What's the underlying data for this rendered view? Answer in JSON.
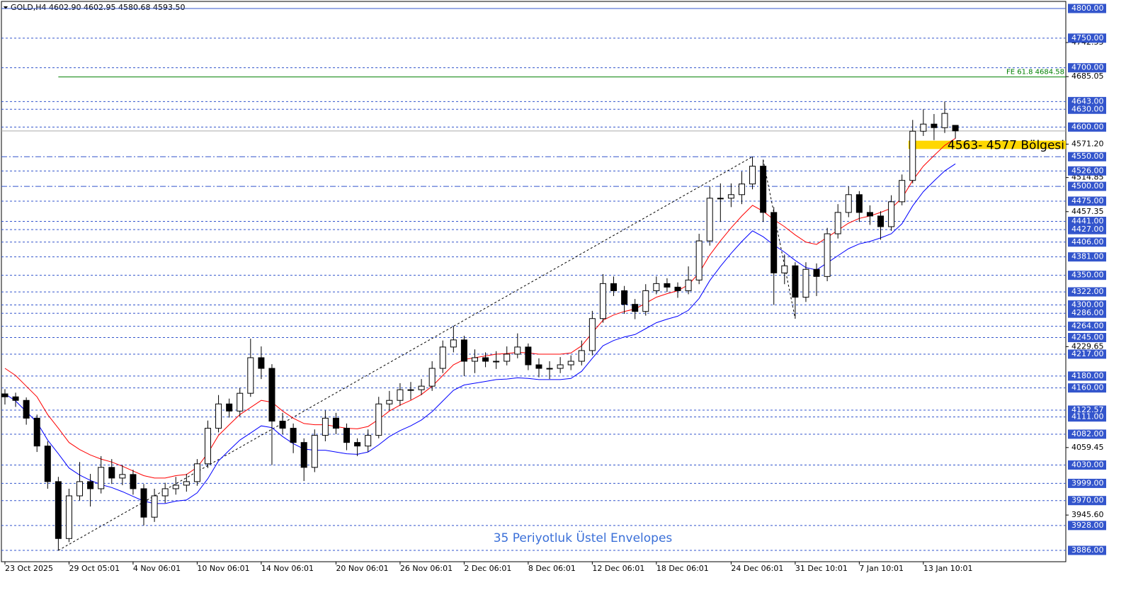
{
  "chart_data": {
    "type": "candlestick",
    "header": "GOLD,H4  4602.90 4602.95 4580.68 4593.50",
    "annotation": "35 Periyotluk Üstel Envelopes",
    "xlim": [
      -0.33,
      99.34
    ],
    "ylim": [
      3866.9,
      4814.3
    ],
    "xticks": [
      {
        "value": 0,
        "label": "23 Oct 2025"
      },
      {
        "value": 6,
        "label": "29 Oct 05:01"
      },
      {
        "value": 12,
        "label": "4 Nov 06:01"
      },
      {
        "value": 18,
        "label": "10 Nov 06:01"
      },
      {
        "value": 24,
        "label": "14 Nov 06:01"
      },
      {
        "value": 31,
        "label": "20 Nov 06:01"
      },
      {
        "value": 37,
        "label": "26 Nov 06:01"
      },
      {
        "value": 43,
        "label": "2 Dec 06:01"
      },
      {
        "value": 49,
        "label": "8 Dec 06:01"
      },
      {
        "value": 55,
        "label": "12 Dec 06:01"
      },
      {
        "value": 61,
        "label": "18 Dec 06:01"
      },
      {
        "value": 68,
        "label": "24 Dec 06:01"
      },
      {
        "value": 74,
        "label": "31 Dec 10:01"
      },
      {
        "value": 80,
        "label": "7 Jan 10:01"
      },
      {
        "value": 86,
        "label": "13 Jan 10:01"
      }
    ],
    "yticks": [
      {
        "value": 4742.55,
        "label": "4742.55"
      },
      {
        "value": 4685.05,
        "label": "4685.05"
      },
      {
        "value": 4571.2,
        "label": "4571.20"
      },
      {
        "value": 4514.85,
        "label": "4514.85"
      },
      {
        "value": 4457.35,
        "label": "4457.35"
      },
      {
        "value": 4229.65,
        "label": "4229.65"
      },
      {
        "value": 4059.45,
        "label": "4059.45"
      },
      {
        "value": 3945.6,
        "label": "3945.60"
      }
    ],
    "levels": [
      {
        "value": 4800,
        "label": "4800.00",
        "style": "solid"
      },
      {
        "value": 4750,
        "label": "4750.00"
      },
      {
        "value": 4700,
        "label": "4700.00"
      },
      {
        "value": 4643,
        "label": "4643.00"
      },
      {
        "value": 4630,
        "label": "4630.00"
      },
      {
        "value": 4600,
        "label": "4600.00"
      },
      {
        "value": 4550,
        "label": "4550.00",
        "style": "dash-dot"
      },
      {
        "value": 4526,
        "label": "4526.00"
      },
      {
        "value": 4500,
        "label": "4500.00",
        "style": "dash-dot"
      },
      {
        "value": 4475,
        "label": "4475.00"
      },
      {
        "value": 4441,
        "label": "4441.00"
      },
      {
        "value": 4427,
        "label": "4427.00"
      },
      {
        "value": 4406,
        "label": "4406.00"
      },
      {
        "value": 4381,
        "label": "4381.00"
      },
      {
        "value": 4350,
        "label": "4350.00"
      },
      {
        "value": 4322,
        "label": "4322.00"
      },
      {
        "value": 4300,
        "label": "4300.00"
      },
      {
        "value": 4286,
        "label": "4286.00"
      },
      {
        "value": 4264,
        "label": "4264.00"
      },
      {
        "value": 4245,
        "label": "4245.00"
      },
      {
        "value": 4217,
        "label": "4217.00"
      },
      {
        "value": 4180,
        "label": "4180.00"
      },
      {
        "value": 4160,
        "label": "4160.00"
      },
      {
        "value": 4122.57,
        "label": "4122.57"
      },
      {
        "value": 4111,
        "label": "4111.00"
      },
      {
        "value": 4082,
        "label": "4082.00"
      },
      {
        "value": 4030,
        "label": "4030.00"
      },
      {
        "value": 3999,
        "label": "3999.00"
      },
      {
        "value": 3970,
        "label": "3970.00"
      },
      {
        "value": 3928,
        "label": "3928.00"
      },
      {
        "value": 3886,
        "label": "3886.00"
      }
    ],
    "fe_line": {
      "value": 4684.58,
      "label": "FE 61.8 4684.58",
      "color": "#008000"
    },
    "zone": {
      "low": 4563,
      "high": 4577,
      "label": "4563- 4577 Bölgesi",
      "color": "#ffd700"
    },
    "ohlc": [
      [
        4150,
        4158,
        4132,
        4145
      ],
      [
        4145,
        4152,
        4128,
        4139
      ],
      [
        4139,
        4144,
        4098,
        4109
      ],
      [
        4109,
        4115,
        4052,
        4062
      ],
      [
        4062,
        4070,
        3990,
        4002
      ],
      [
        4002,
        4010,
        3886,
        3906
      ],
      [
        3906,
        3990,
        3900,
        3978
      ],
      [
        3978,
        4035,
        3970,
        4002
      ],
      [
        4002,
        4015,
        3960,
        3990
      ],
      [
        3990,
        4045,
        3982,
        4026
      ],
      [
        4026,
        4040,
        3998,
        4008
      ],
      [
        4008,
        4030,
        3996,
        4014
      ],
      [
        4014,
        4022,
        3980,
        3990
      ],
      [
        3990,
        3998,
        3928,
        3942
      ],
      [
        3942,
        3990,
        3934,
        3978
      ],
      [
        3978,
        4000,
        3966,
        3990
      ],
      [
        3990,
        4010,
        3980,
        3996
      ],
      [
        3996,
        4015,
        3985,
        4002
      ],
      [
        4002,
        4040,
        3995,
        4032
      ],
      [
        4032,
        4105,
        4025,
        4092
      ],
      [
        4092,
        4148,
        4085,
        4133
      ],
      [
        4133,
        4142,
        4110,
        4121
      ],
      [
        4121,
        4160,
        4112,
        4151
      ],
      [
        4151,
        4243,
        4145,
        4211
      ],
      [
        4211,
        4230,
        4175,
        4193
      ],
      [
        4193,
        4200,
        4030,
        4104
      ],
      [
        4104,
        4118,
        4082,
        4092
      ],
      [
        4092,
        4100,
        4050,
        4068
      ],
      [
        4068,
        4075,
        4003,
        4026
      ],
      [
        4026,
        4090,
        4018,
        4080
      ],
      [
        4080,
        4122,
        4070,
        4109
      ],
      [
        4109,
        4118,
        4082,
        4092
      ],
      [
        4092,
        4100,
        4055,
        4068
      ],
      [
        4068,
        4075,
        4045,
        4062
      ],
      [
        4062,
        4090,
        4052,
        4080
      ],
      [
        4080,
        4145,
        4075,
        4133
      ],
      [
        4133,
        4155,
        4122,
        4139
      ],
      [
        4139,
        4168,
        4130,
        4157
      ],
      [
        4157,
        4170,
        4140,
        4157
      ],
      [
        4157,
        4175,
        4148,
        4163
      ],
      [
        4163,
        4205,
        4155,
        4193
      ],
      [
        4193,
        4240,
        4185,
        4229
      ],
      [
        4229,
        4264,
        4220,
        4241
      ],
      [
        4241,
        4248,
        4180,
        4205
      ],
      [
        4205,
        4225,
        4185,
        4211
      ],
      [
        4211,
        4220,
        4195,
        4205
      ],
      [
        4205,
        4222,
        4192,
        4205
      ],
      [
        4205,
        4230,
        4198,
        4217
      ],
      [
        4217,
        4252,
        4210,
        4229
      ],
      [
        4229,
        4235,
        4190,
        4199
      ],
      [
        4199,
        4210,
        4178,
        4193
      ],
      [
        4193,
        4205,
        4175,
        4193
      ],
      [
        4193,
        4212,
        4185,
        4199
      ],
      [
        4199,
        4215,
        4190,
        4205
      ],
      [
        4205,
        4240,
        4198,
        4223
      ],
      [
        4223,
        4290,
        4215,
        4277
      ],
      [
        4277,
        4352,
        4270,
        4336
      ],
      [
        4336,
        4348,
        4315,
        4324
      ],
      [
        4324,
        4332,
        4285,
        4301
      ],
      [
        4301,
        4310,
        4276,
        4289
      ],
      [
        4289,
        4335,
        4282,
        4324
      ],
      [
        4324,
        4348,
        4318,
        4336
      ],
      [
        4336,
        4345,
        4322,
        4330
      ],
      [
        4330,
        4338,
        4312,
        4324
      ],
      [
        4324,
        4365,
        4318,
        4342
      ],
      [
        4342,
        4420,
        4335,
        4408
      ],
      [
        4408,
        4500,
        4400,
        4480
      ],
      [
        4480,
        4505,
        4440,
        4480
      ],
      [
        4480,
        4505,
        4465,
        4486
      ],
      [
        4486,
        4525,
        4470,
        4504
      ],
      [
        4504,
        4550,
        4495,
        4534
      ],
      [
        4534,
        4545,
        4440,
        4456
      ],
      [
        4456,
        4465,
        4300,
        4354
      ],
      [
        4354,
        4385,
        4335,
        4366
      ],
      [
        4366,
        4372,
        4277,
        4313
      ],
      [
        4313,
        4372,
        4305,
        4360
      ],
      [
        4360,
        4370,
        4315,
        4348
      ],
      [
        4348,
        4430,
        4340,
        4420
      ],
      [
        4420,
        4470,
        4412,
        4456
      ],
      [
        4456,
        4500,
        4448,
        4486
      ],
      [
        4486,
        4492,
        4440,
        4456
      ],
      [
        4456,
        4468,
        4435,
        4450
      ],
      [
        4450,
        4458,
        4410,
        4432
      ],
      [
        4432,
        4485,
        4425,
        4474
      ],
      [
        4474,
        4520,
        4468,
        4510
      ],
      [
        4510,
        4612,
        4505,
        4593
      ],
      [
        4593,
        4630,
        4585,
        4605
      ],
      [
        4605,
        4622,
        4578,
        4599
      ],
      [
        4599,
        4643,
        4590,
        4623
      ],
      [
        4602.9,
        4602.95,
        4580.68,
        4593.5
      ]
    ],
    "series": [
      {
        "color": "#ff0000",
        "values": [
          4193,
          4181,
          4163,
          4145,
          4115,
          4092,
          4068,
          4056,
          4047,
          4040,
          4035,
          4028,
          4020,
          4012,
          4008,
          4008,
          4012,
          4014,
          4026,
          4050,
          4080,
          4098,
          4115,
          4127,
          4139,
          4136,
          4121,
          4109,
          4100,
          4098,
          4098,
          4095,
          4092,
          4091,
          4095,
          4107,
          4121,
          4131,
          4139,
          4149,
          4163,
          4181,
          4199,
          4208,
          4211,
          4214,
          4217,
          4218,
          4220,
          4219,
          4217,
          4217,
          4217,
          4219,
          4231,
          4253,
          4274,
          4283,
          4289,
          4293,
          4303,
          4313,
          4319,
          4324,
          4334,
          4354,
          4384,
          4408,
          4430,
          4450,
          4468,
          4458,
          4444,
          4432,
          4418,
          4406,
          4402,
          4414,
          4426,
          4438,
          4446,
          4450,
          4456,
          4463,
          4480,
          4510,
          4534,
          4552,
          4569,
          4581
        ]
      },
      {
        "color": "#0000ff",
        "values": [
          4150,
          4138,
          4120,
          4102,
          4072,
          4049,
          4025,
          4013,
          4004,
          3997,
          3992,
          3985,
          3977,
          3969,
          3965,
          3965,
          3969,
          3971,
          3983,
          4007,
          4037,
          4055,
          4072,
          4084,
          4096,
          4093,
          4078,
          4066,
          4057,
          4055,
          4055,
          4052,
          4049,
          4048,
          4052,
          4064,
          4078,
          4088,
          4096,
          4106,
          4120,
          4138,
          4156,
          4165,
          4168,
          4171,
          4174,
          4175,
          4177,
          4176,
          4174,
          4174,
          4174,
          4176,
          4188,
          4210,
          4231,
          4240,
          4246,
          4250,
          4260,
          4270,
          4276,
          4281,
          4291,
          4311,
          4341,
          4365,
          4387,
          4407,
          4425,
          4415,
          4401,
          4389,
          4375,
          4363,
          4359,
          4371,
          4383,
          4395,
          4403,
          4407,
          4413,
          4420,
          4437,
          4467,
          4491,
          4509,
          4526,
          4538
        ]
      }
    ]
  }
}
